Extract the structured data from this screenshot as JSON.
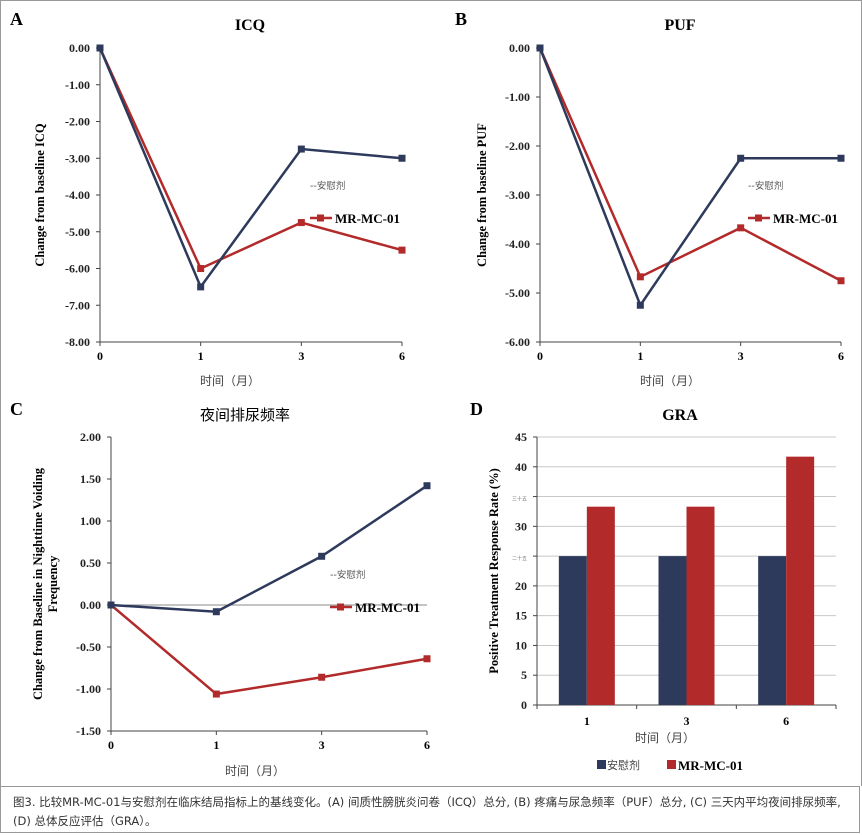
{
  "colors": {
    "placebo": "#2e3a5c",
    "mr": "#b22a2a",
    "grid": "#c8c8c8",
    "axis": "#444"
  },
  "chart_data": [
    {
      "panel": "A",
      "type": "line",
      "title": "ICQ",
      "xlabel": "时间（月）",
      "ylabel": "Change from baseline ICQ",
      "x": [
        "0",
        "1",
        "3",
        "6"
      ],
      "ylim": [
        -8,
        0
      ],
      "ystep": 1,
      "yticks": [
        "0.00",
        "-1.00",
        "-2.00",
        "-3.00",
        "-4.00",
        "-5.00",
        "-6.00",
        "-7.00",
        "-8.00"
      ],
      "grid": false,
      "series": [
        {
          "name": "--安慰剂",
          "key": "placebo",
          "values": [
            0,
            -6.5,
            -2.75,
            -3.0
          ]
        },
        {
          "name": "MR-MC-01",
          "key": "mr",
          "values": [
            0,
            -6.0,
            -4.75,
            -5.5
          ]
        }
      ]
    },
    {
      "panel": "B",
      "type": "line",
      "title": "PUF",
      "xlabel": "时间（月）",
      "ylabel": "Change from baseline PUF",
      "x": [
        "0",
        "1",
        "3",
        "6"
      ],
      "ylim": [
        -6,
        0
      ],
      "ystep": 1,
      "yticks": [
        "0.00",
        "-1.00",
        "-2.00",
        "-3.00",
        "-4.00",
        "-5.00",
        "-6.00"
      ],
      "grid": false,
      "series": [
        {
          "name": "--安慰剂",
          "key": "placebo",
          "values": [
            0,
            -5.25,
            -2.25,
            -2.25
          ]
        },
        {
          "name": "MR-MC-01",
          "key": "mr",
          "values": [
            0,
            -4.67,
            -3.67,
            -4.75
          ]
        }
      ]
    },
    {
      "panel": "C",
      "type": "line",
      "title": "夜间排尿频率",
      "xlabel": "时间（月）",
      "ylabel": "Change from Baseline in Nighttime Voiding Frequency",
      "x": [
        "0",
        "1",
        "3",
        "6"
      ],
      "ylim": [
        -1.5,
        2
      ],
      "ystep": 0.5,
      "yticks": [
        "2.00",
        "1.50",
        "1.00",
        "0.50",
        "0.00",
        "-0.50",
        "-1.00",
        "-1.50"
      ],
      "grid": false,
      "series": [
        {
          "name": "--安慰剂",
          "key": "placebo",
          "values": [
            0,
            -0.08,
            0.58,
            1.42
          ]
        },
        {
          "name": "MR-MC-01",
          "key": "mr",
          "values": [
            0,
            -1.06,
            -0.86,
            -0.64
          ]
        }
      ]
    },
    {
      "panel": "D",
      "type": "bar",
      "title": "GRA",
      "xlabel": "时间（月）",
      "ylabel": "Positive Treatment Response Rate (%)",
      "categories": [
        "1",
        "3",
        "6"
      ],
      "ylim": [
        0,
        45
      ],
      "ystep": 5,
      "yticks": [
        "45",
        "40",
        "三十五",
        "30",
        "二十五",
        "20",
        "15",
        "10",
        "5",
        "0"
      ],
      "grid": true,
      "series": [
        {
          "name": "安慰剂",
          "key": "placebo",
          "values": [
            25,
            25,
            25
          ]
        },
        {
          "name": "MR-MC-01",
          "key": "mr",
          "values": [
            33.3,
            33.3,
            41.7
          ]
        }
      ]
    }
  ],
  "caption": "图3. 比较MR-MC-01与安慰剂在临床结局指标上的基线变化。(A) 间质性膀胱炎问卷（ICQ）总分, (B) 疼痛与尿急频率（PUF）总分, (C) 三天内平均夜间排尿频率, (D) 总体反应评估（GRA）。"
}
